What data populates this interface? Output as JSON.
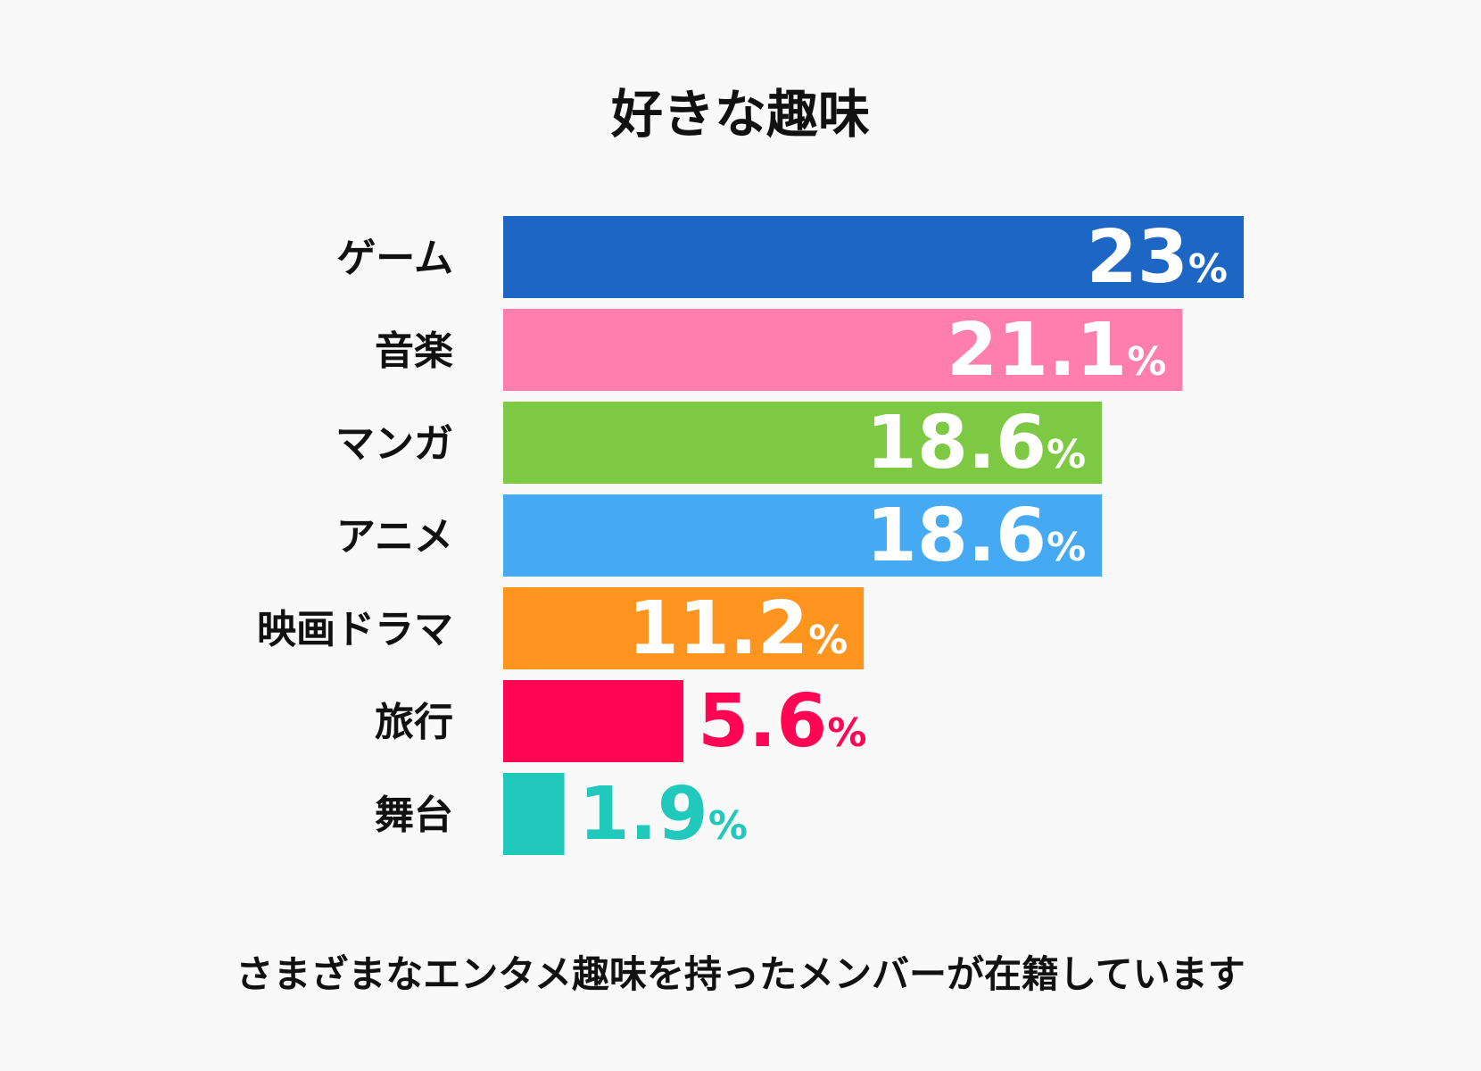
{
  "chart_data": {
    "type": "bar",
    "orientation": "horizontal",
    "title": "好きな趣味",
    "categories": [
      "ゲーム",
      "音楽",
      "マンガ",
      "アニメ",
      "映画ドラマ",
      "旅行",
      "舞台"
    ],
    "values": [
      23,
      21.1,
      18.6,
      18.6,
      11.2,
      5.6,
      1.9
    ],
    "value_labels": [
      "23",
      "21.1",
      "18.6",
      "18.6",
      "11.2",
      "5.6",
      "1.9"
    ],
    "unit": "%",
    "colors": [
      "#1e66c4",
      "#ff7eab",
      "#7dc943",
      "#45a9f3",
      "#ff951f",
      "#ff0553",
      "#21c8bc"
    ],
    "xlim": [
      0,
      23
    ],
    "xlabel": "",
    "ylabel": "",
    "grid": false,
    "legend": "none"
  },
  "caption": "さまざまなエンタメ趣味を持ったメンバーが在籍しています",
  "colors": {
    "background": "#f9f9f9",
    "text": "#111111",
    "inside_label": "#ffffff"
  }
}
